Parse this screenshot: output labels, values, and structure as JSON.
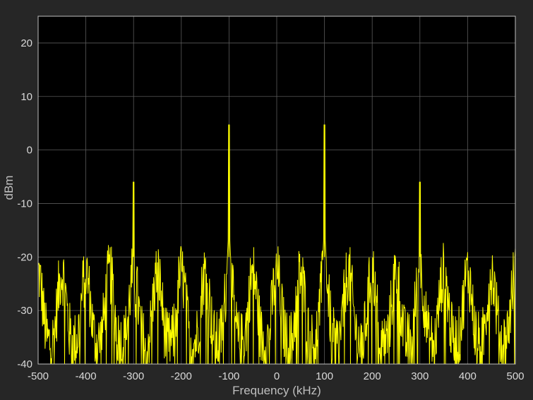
{
  "chart_data": {
    "type": "line",
    "title": "",
    "xlabel": "Frequency (kHz)",
    "ylabel": "dBm",
    "xlim": [
      -500,
      500
    ],
    "ylim": [
      -40,
      25
    ],
    "x_ticks": [
      -500,
      -400,
      -300,
      -200,
      -100,
      0,
      100,
      200,
      300,
      400,
      500
    ],
    "y_ticks": [
      -40,
      -30,
      -20,
      -10,
      0,
      10,
      20
    ],
    "grid": true,
    "background": "#000000",
    "figure_background": "#262626",
    "grid_color": "#5a5a5a",
    "line_color": "#ffff00",
    "peaks": [
      {
        "x": -300,
        "y": -6
      },
      {
        "x": -100,
        "y": 4.7
      },
      {
        "x": 100,
        "y": 4.7
      },
      {
        "x": 300,
        "y": -6
      }
    ],
    "noise_floor_range": [
      -40,
      -17
    ]
  }
}
